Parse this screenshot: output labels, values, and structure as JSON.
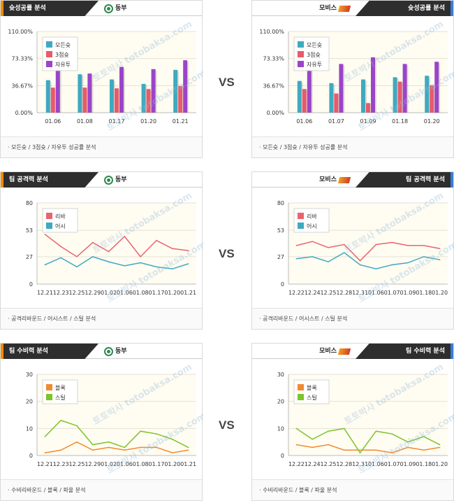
{
  "watermark": "토토박사 totobaksa.com",
  "vs_label": "VS",
  "panels": [
    {
      "id": "p1",
      "side": "left",
      "title": "슛성공률 분석",
      "team": "동부",
      "logo": "dongbu-logo",
      "footer": "· 모든슛 / 3점슛 / 자유투 성공률 분석",
      "chart_data": {
        "type": "bar",
        "categories": [
          "01.06",
          "01.08",
          "01.17",
          "01.20",
          "01.21"
        ],
        "ylim": [
          0,
          110
        ],
        "y_ticks": [
          0,
          36.67,
          73.33,
          110
        ],
        "y_tick_labels": [
          "0.00%",
          "36.67%",
          "73.33%",
          "110.00%"
        ],
        "legend_position": "top-left",
        "series": [
          {
            "name": "모든슛",
            "color": "#3fa9c0",
            "values": [
              44,
              52,
              45,
              39,
              58
            ]
          },
          {
            "name": "3점슛",
            "color": "#e85b6a",
            "values": [
              34,
              34,
              33,
              32,
              36
            ]
          },
          {
            "name": "자유투",
            "color": "#9a45c8",
            "values": [
              63,
              53,
              62,
              59,
              71
            ]
          }
        ]
      }
    },
    {
      "id": "p2",
      "side": "right",
      "title": "슛성공률 분석",
      "team": "모비스",
      "logo": "mobis-logo",
      "footer": "· 모든슛 / 3점슛 / 자유투 성공률 분석",
      "chart_data": {
        "type": "bar",
        "categories": [
          "01.06",
          "01.07",
          "01.09",
          "01.18",
          "01.20"
        ],
        "ylim": [
          0,
          110
        ],
        "y_ticks": [
          0,
          36.67,
          73.33,
          110
        ],
        "y_tick_labels": [
          "0.00%",
          "36.67%",
          "73.33%",
          "110.00%"
        ],
        "legend_position": "top-left",
        "series": [
          {
            "name": "모든슛",
            "color": "#3fa9c0",
            "values": [
              43,
              40,
              45,
              48,
              50
            ]
          },
          {
            "name": "3점슛",
            "color": "#e85b6a",
            "values": [
              32,
              26,
              13,
              42,
              37
            ]
          },
          {
            "name": "자유투",
            "color": "#9a45c8",
            "values": [
              60,
              66,
              75,
              66,
              69
            ]
          }
        ]
      }
    },
    {
      "id": "p3",
      "side": "left",
      "title": "팀 공격력 분석",
      "team": "동부",
      "logo": "dongbu-logo",
      "footer": "· 공격리바운드 / 어시스트 / 스틸 분석",
      "chart_data": {
        "type": "line",
        "categories": [
          "12.21",
          "12.23",
          "12.25",
          "12.29",
          "01.02",
          "01.06",
          "01.08",
          "01.17",
          "01.20",
          "01.21"
        ],
        "ylim": [
          0,
          80
        ],
        "y_ticks": [
          0,
          27,
          53,
          80
        ],
        "y_tick_labels": [
          "0",
          "27",
          "53",
          "80"
        ],
        "legend_position": "top-left",
        "series": [
          {
            "name": "리바",
            "color": "#e8646e",
            "values": [
              49,
              37,
              27,
              41,
              32,
              47,
              27,
              43,
              35,
              33
            ]
          },
          {
            "name": "어시",
            "color": "#3fa9c0",
            "values": [
              19,
              26,
              17,
              27,
              22,
              18,
              21,
              17,
              15,
              20
            ]
          }
        ]
      }
    },
    {
      "id": "p4",
      "side": "right",
      "title": "팀 공격력 분석",
      "team": "모비스",
      "logo": "mobis-logo",
      "footer": "· 공격리바운드 / 어시스트 / 스틸 분석",
      "chart_data": {
        "type": "line",
        "categories": [
          "12.22",
          "12.24",
          "12.25",
          "12.28",
          "12.31",
          "01.06",
          "01.07",
          "01.09",
          "01.18",
          "01.20"
        ],
        "ylim": [
          0,
          80
        ],
        "y_ticks": [
          0,
          27,
          53,
          80
        ],
        "y_tick_labels": [
          "0",
          "27",
          "53",
          "80"
        ],
        "legend_position": "top-left",
        "series": [
          {
            "name": "리바",
            "color": "#e8646e",
            "values": [
              38,
              42,
              36,
              39,
              23,
              39,
              41,
              38,
              38,
              35
            ]
          },
          {
            "name": "어시",
            "color": "#3fa9c0",
            "values": [
              25,
              27,
              22,
              31,
              19,
              15,
              19,
              21,
              27,
              24
            ]
          }
        ]
      }
    },
    {
      "id": "p5",
      "side": "left",
      "title": "팀 수비력 분석",
      "team": "동부",
      "logo": "dongbu-logo",
      "footer": "· 수비리바운드 / 블록 / 파울 분석",
      "chart_data": {
        "type": "line",
        "categories": [
          "12.21",
          "12.23",
          "12.25",
          "12.29",
          "01.02",
          "01.06",
          "01.08",
          "01.17",
          "01.20",
          "01.21"
        ],
        "ylim": [
          0,
          30
        ],
        "y_ticks": [
          0,
          10,
          20,
          30
        ],
        "y_tick_labels": [
          "0",
          "10",
          "20",
          "30"
        ],
        "legend_position": "top-left",
        "series": [
          {
            "name": "블록",
            "color": "#f28a30",
            "values": [
              1,
              2,
              5,
              2,
              3,
              2,
              3,
              3,
              1,
              2
            ]
          },
          {
            "name": "스틸",
            "color": "#7cc428",
            "values": [
              7,
              13,
              11,
              4,
              5,
              3,
              9,
              8,
              6,
              3
            ]
          }
        ]
      }
    },
    {
      "id": "p6",
      "side": "right",
      "title": "팀 수비력 분석",
      "team": "모비스",
      "logo": "mobis-logo",
      "footer": "· 수비리바운드 / 블록 / 파울 분석",
      "chart_data": {
        "type": "line",
        "categories": [
          "12.22",
          "12.24",
          "12.25",
          "12.28",
          "12.31",
          "01.06",
          "01.07",
          "01.09",
          "01.18",
          "01.20"
        ],
        "ylim": [
          0,
          30
        ],
        "y_ticks": [
          0,
          10,
          20,
          30
        ],
        "y_tick_labels": [
          "0",
          "10",
          "20",
          "30"
        ],
        "legend_position": "top-left",
        "series": [
          {
            "name": "블록",
            "color": "#f28a30",
            "values": [
              4,
              3,
              4,
              2,
              2,
              2,
              1,
              3,
              2,
              3
            ]
          },
          {
            "name": "스틸",
            "color": "#7cc428",
            "values": [
              10,
              6,
              9,
              10,
              1,
              9,
              8,
              5,
              7,
              4
            ]
          }
        ]
      }
    }
  ]
}
